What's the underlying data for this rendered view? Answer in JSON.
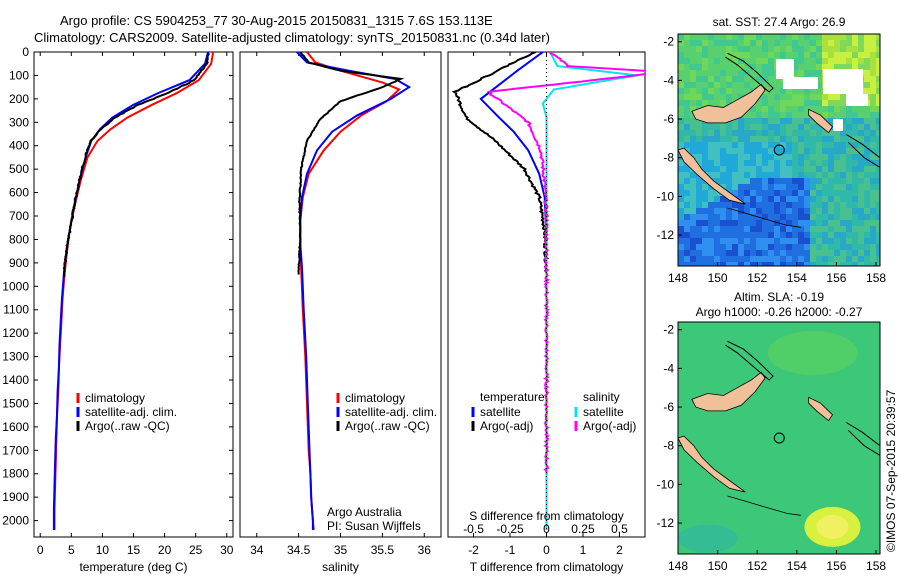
{
  "header": {
    "line1": "Argo profile: CS 5904253_77 30-Aug-2015 20150831_1315 7.6S 153.113E",
    "line2": "Climatology: CARS2009. Satellite-adjusted climatology: synTS_20150831.nc (0.34d later)"
  },
  "colors": {
    "climatology": "#ff0000",
    "satellite": "#0000ff",
    "argo": "#000000",
    "sat_salinity": "#00e5ee",
    "argo_salinity": "#ff00ff"
  },
  "chart_data": [
    {
      "type": "line",
      "id": "temperature",
      "xlabel": "temperature (deg C)",
      "xlim": [
        -1,
        31
      ],
      "ylim": [
        2070,
        0
      ],
      "xticks": [
        0,
        5,
        10,
        15,
        20,
        25,
        30
      ],
      "yticks": [
        0,
        100,
        200,
        300,
        400,
        500,
        600,
        700,
        800,
        900,
        1000,
        1100,
        1200,
        1300,
        1400,
        1500,
        1600,
        1700,
        1800,
        1900,
        2000
      ],
      "legend": [
        "climatology",
        "satellite-adj. clim.",
        "Argo(..raw -QC)"
      ],
      "series": [
        {
          "name": "climatology",
          "color": "#ff0000",
          "x": [
            27.8,
            27.5,
            25.5,
            22,
            18,
            14,
            11.3,
            9.2,
            7.6,
            6.5,
            5.6,
            4.8,
            4.3,
            3.9,
            3.6,
            3.4,
            3.2,
            3.0,
            2.9,
            2.7,
            2.6,
            2.5,
            2.4,
            2.3,
            2.3
          ],
          "y": [
            0,
            50,
            120,
            175,
            225,
            280,
            330,
            380,
            450,
            550,
            650,
            750,
            850,
            950,
            1050,
            1150,
            1250,
            1350,
            1450,
            1550,
            1650,
            1750,
            1850,
            1950,
            2040
          ]
        },
        {
          "name": "satellite-adj. clim.",
          "color": "#0000ff",
          "x": [
            27.0,
            26.5,
            24,
            19,
            15,
            11.6,
            9.6,
            8.2,
            7.3,
            6.3,
            5.5,
            4.8,
            4.2,
            3.8,
            3.5,
            3.3,
            3.1,
            3.0,
            2.8,
            2.7,
            2.5,
            2.4,
            2.3,
            2.2,
            2.2
          ],
          "y": [
            0,
            50,
            120,
            175,
            225,
            280,
            330,
            380,
            450,
            550,
            650,
            750,
            850,
            950,
            1050,
            1150,
            1250,
            1350,
            1450,
            1550,
            1650,
            1750,
            1850,
            1950,
            2040
          ]
        },
        {
          "name": "Argo(..raw -QC)",
          "color": "#000000",
          "x": [
            27.1,
            26.8,
            24.8,
            20.5,
            15.8,
            12,
            9.8,
            8.1,
            7.2,
            6.3,
            5.5,
            4.9,
            4.2,
            3.8
          ],
          "y": [
            5,
            50,
            120,
            175,
            225,
            280,
            330,
            380,
            450,
            550,
            650,
            750,
            850,
            960
          ]
        }
      ]
    },
    {
      "type": "line",
      "id": "salinity",
      "xlabel": "salinity",
      "xlim": [
        33.8,
        36.2
      ],
      "ylim": [
        2070,
        0
      ],
      "xticks": [
        34,
        34.5,
        35,
        35.5,
        36
      ],
      "legend": [
        "climatology",
        "satellite-adj. clim.",
        "Argo(..raw -QC)"
      ],
      "annotation": [
        "Argo Australia",
        "PI: Susan Wijffels"
      ],
      "series": [
        {
          "name": "climatology",
          "color": "#ff0000",
          "x": [
            34.6,
            34.7,
            35.0,
            35.5,
            35.7,
            35.55,
            35.25,
            35.0,
            34.8,
            34.62,
            34.55,
            34.52,
            34.52,
            34.53,
            34.55,
            34.58,
            34.6,
            34.62,
            34.64,
            34.65,
            34.66,
            34.67,
            34.68
          ],
          "y": [
            0,
            45,
            80,
            130,
            160,
            210,
            270,
            340,
            420,
            520,
            620,
            720,
            820,
            920,
            1100,
            1300,
            1500,
            1700,
            1800,
            1900,
            1950,
            2000,
            2040
          ]
        },
        {
          "name": "satellite-adj. clim.",
          "color": "#0000ff",
          "x": [
            34.48,
            34.6,
            35.1,
            35.65,
            35.82,
            35.6,
            35.2,
            34.9,
            34.72,
            34.6,
            34.54,
            34.52,
            34.52,
            34.54,
            34.56,
            34.59,
            34.61,
            34.63,
            34.64,
            34.65,
            34.66,
            34.67,
            34.67
          ],
          "y": [
            0,
            45,
            80,
            115,
            150,
            200,
            270,
            340,
            420,
            520,
            620,
            720,
            820,
            920,
            1100,
            1300,
            1500,
            1700,
            1800,
            1900,
            1950,
            2000,
            2040
          ]
        },
        {
          "name": "Argo(..raw -QC)",
          "color": "#000000",
          "x": [
            34.52,
            34.62,
            35.0,
            35.72,
            35.5,
            35.0,
            34.75,
            34.6,
            34.53,
            34.51,
            34.52,
            34.5
          ],
          "y": [
            0,
            45,
            80,
            115,
            150,
            210,
            290,
            380,
            500,
            640,
            780,
            950
          ]
        }
      ]
    },
    {
      "type": "line",
      "id": "difference",
      "xlabel": "T difference from climatology",
      "xlabel_top": "S difference from climatology",
      "xlim": [
        -2.7,
        2.7
      ],
      "ylim": [
        2070,
        0
      ],
      "xticks": [
        -2,
        -1,
        0,
        1,
        2
      ],
      "sticks": [
        -0.5,
        -0.25,
        0,
        0.25,
        0.5
      ],
      "legend_temperature": [
        "temperature",
        "satellite",
        "Argo(-adj)"
      ],
      "legend_salinity": [
        "salinity",
        "satellite",
        "Argo(-adj)"
      ],
      "series": [
        {
          "name": "satellite",
          "color": "#0000ff",
          "x": [
            -0.1,
            -0.8,
            -1.8,
            -1.3,
            -0.9,
            -0.5,
            -0.2,
            -0.05,
            0,
            0,
            0,
            0,
            0
          ],
          "y": [
            0,
            80,
            200,
            280,
            340,
            420,
            520,
            620,
            800,
            1000,
            1400,
            1800,
            2040
          ]
        },
        {
          "name": "Argo(-adj)",
          "color": "#000000",
          "x": [
            -0.3,
            -1.6,
            -2.5,
            -2.2,
            -1.4,
            -0.6,
            -0.2,
            -0.05,
            0
          ],
          "y": [
            0,
            100,
            170,
            280,
            380,
            500,
            620,
            760,
            940
          ]
        },
        {
          "name": "satellite",
          "color": "#00e5ee",
          "x": [
            0.1,
            0.3,
            2.5,
            1.7,
            0.2,
            -0.1,
            0,
            0,
            0,
            0,
            0,
            0,
            0
          ],
          "y": [
            0,
            60,
            100,
            120,
            160,
            220,
            280,
            340,
            420,
            600,
            1000,
            1600,
            2040
          ]
        },
        {
          "name": "Argo(-adj)",
          "color": "#ff00ff",
          "x": [
            0.1,
            0.6,
            3.2,
            1.3,
            -1.6,
            -0.5,
            -0.15,
            -0.05,
            0,
            0,
            0,
            0,
            0
          ],
          "y": [
            0,
            60,
            85,
            120,
            170,
            300,
            420,
            560,
            700,
            900,
            1100,
            1400,
            1800
          ]
        }
      ]
    },
    {
      "type": "heatmap",
      "id": "sst-map",
      "title": "sat. SST: 27.4 Argo: 26.9",
      "xticks": [
        148,
        150,
        152,
        154,
        156,
        158
      ],
      "yticks": [
        -2,
        -4,
        -6,
        -8,
        -10,
        -12
      ],
      "xlim": [
        148,
        158.2
      ],
      "ylim": [
        -13.6,
        -1.6
      ],
      "argo_position": [
        153.113,
        -7.6
      ]
    },
    {
      "type": "heatmap",
      "id": "sla-map",
      "title_line1": "Altim. SLA: -0.19",
      "title_line2": "Argo h1000: -0.26 h2000: -0.27",
      "xticks": [
        148,
        150,
        152,
        154,
        156,
        158
      ],
      "yticks": [
        -2,
        -4,
        -6,
        -8,
        -10,
        -12
      ],
      "xlim": [
        148,
        158.2
      ],
      "ylim": [
        -13.6,
        -1.6
      ],
      "argo_position": [
        153.113,
        -7.6
      ]
    }
  ],
  "footer": {
    "imos": "©IMOS 07-Sep-2015 20:39:57"
  }
}
